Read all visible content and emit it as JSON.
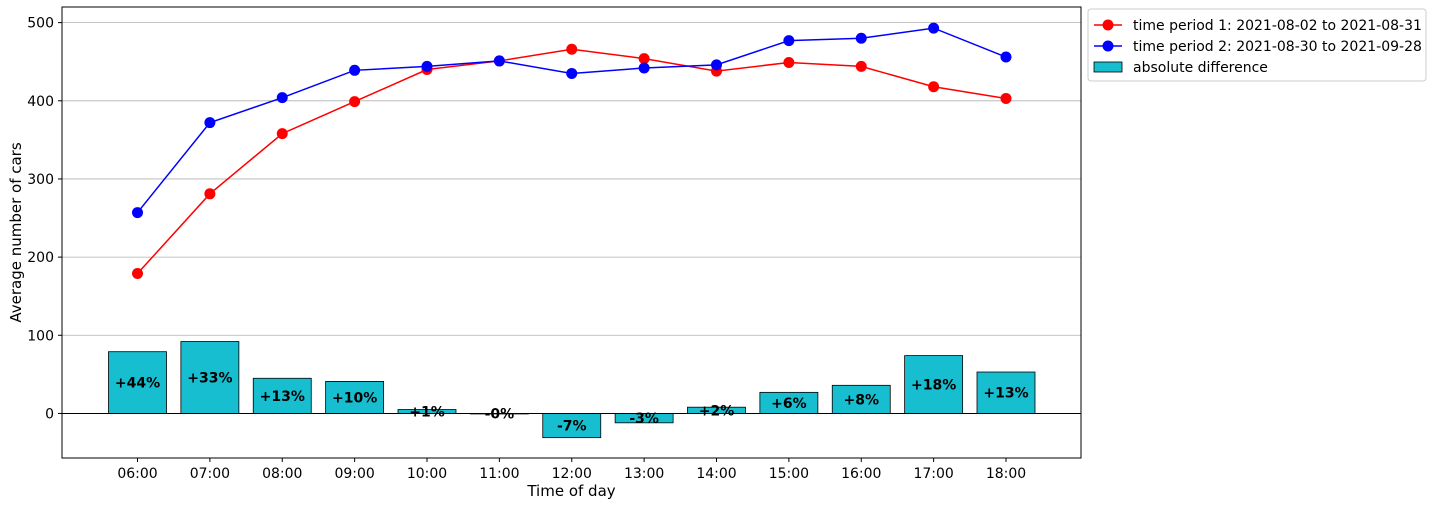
{
  "chart_data": {
    "type": "line",
    "title": "",
    "xlabel": "Time of day",
    "ylabel": "Average number of cars",
    "ylim": [
      -57,
      520
    ],
    "yticks": [
      0,
      100,
      200,
      300,
      400,
      500
    ],
    "grid": "horizontal",
    "legend_position": "outside top-right",
    "categories": [
      "06:00",
      "07:00",
      "08:00",
      "09:00",
      "10:00",
      "11:00",
      "12:00",
      "13:00",
      "14:00",
      "15:00",
      "16:00",
      "17:00",
      "18:00"
    ],
    "series": [
      {
        "name": "time period 1: 2021-08-02 to 2021-08-31",
        "type": "line",
        "color": "#ff0000",
        "values": [
          179,
          281,
          358,
          399,
          440,
          451,
          466,
          454,
          438,
          449,
          444,
          418,
          403
        ]
      },
      {
        "name": "time period 2: 2021-08-30 to 2021-09-28",
        "type": "line",
        "color": "#0000ff",
        "values": [
          257,
          372,
          404,
          439,
          444,
          451,
          435,
          442,
          446,
          477,
          480,
          493,
          456
        ]
      },
      {
        "name": "absolute difference",
        "type": "bar",
        "color": "#17becf",
        "values": [
          79,
          92,
          45,
          41,
          5,
          0,
          -31,
          -12,
          8,
          27,
          36,
          74,
          53
        ],
        "labels": [
          "+44%",
          "+33%",
          "+13%",
          "+10%",
          "+1%",
          "-0%",
          "-7%",
          "-3%",
          "+2%",
          "+6%",
          "+8%",
          "+18%",
          "+13%"
        ]
      }
    ]
  }
}
